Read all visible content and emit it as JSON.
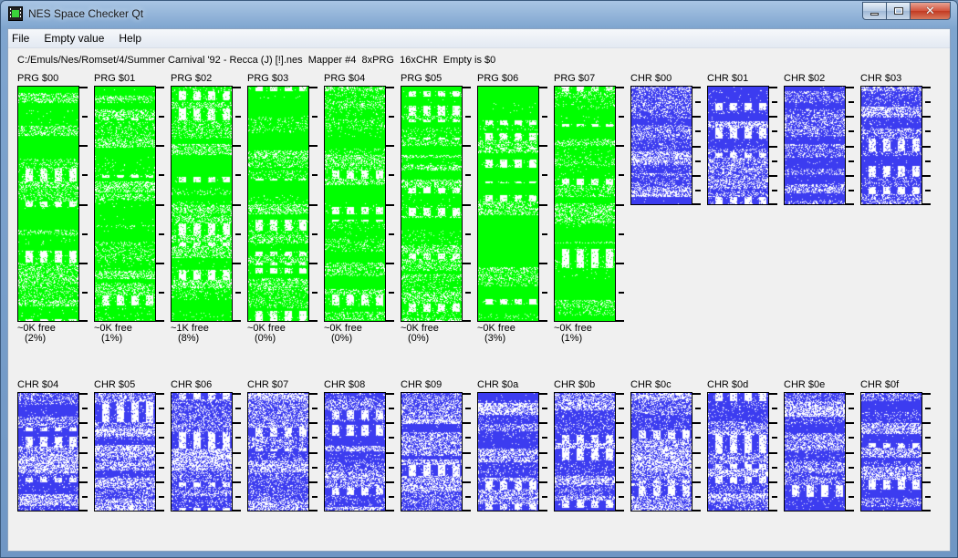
{
  "window": {
    "title": "NES Space Checker Qt"
  },
  "menu": [
    "File",
    "Empty value",
    "Help"
  ],
  "info": {
    "path": "C:/Emuls/Nes/Romset/4/Summer Carnival '92 - Recca (J) [!].nes",
    "mapper": "Mapper #4",
    "prg_count": "8xPRG",
    "chr_count": "16xCHR",
    "empty": "Empty is $0"
  },
  "colors": {
    "prg": "#00ff00",
    "chr": "#3c3cf0",
    "empty": "#ffffff"
  },
  "prg_banks": [
    {
      "label": "PRG $00",
      "free": "~0K free",
      "percent": "(2%)"
    },
    {
      "label": "PRG $01",
      "free": "~0K free",
      "percent": "(1%)"
    },
    {
      "label": "PRG $02",
      "free": "~1K free",
      "percent": "(8%)"
    },
    {
      "label": "PRG $03",
      "free": "~0K free",
      "percent": "(0%)"
    },
    {
      "label": "PRG $04",
      "free": "~0K free",
      "percent": "(0%)"
    },
    {
      "label": "PRG $05",
      "free": "~0K free",
      "percent": "(0%)"
    },
    {
      "label": "PRG $06",
      "free": "~0K free",
      "percent": "(3%)"
    },
    {
      "label": "PRG $07",
      "free": "~0K free",
      "percent": "(1%)"
    }
  ],
  "chr_banks": [
    {
      "label": "CHR $00"
    },
    {
      "label": "CHR $01"
    },
    {
      "label": "CHR $02"
    },
    {
      "label": "CHR $03"
    },
    {
      "label": "CHR $04"
    },
    {
      "label": "CHR $05"
    },
    {
      "label": "CHR $06"
    },
    {
      "label": "CHR $07"
    },
    {
      "label": "CHR $08"
    },
    {
      "label": "CHR $09"
    },
    {
      "label": "CHR $0a"
    },
    {
      "label": "CHR $0b"
    },
    {
      "label": "CHR $0c"
    },
    {
      "label": "CHR $0d"
    },
    {
      "label": "CHR $0e"
    },
    {
      "label": "CHR $0f"
    }
  ]
}
